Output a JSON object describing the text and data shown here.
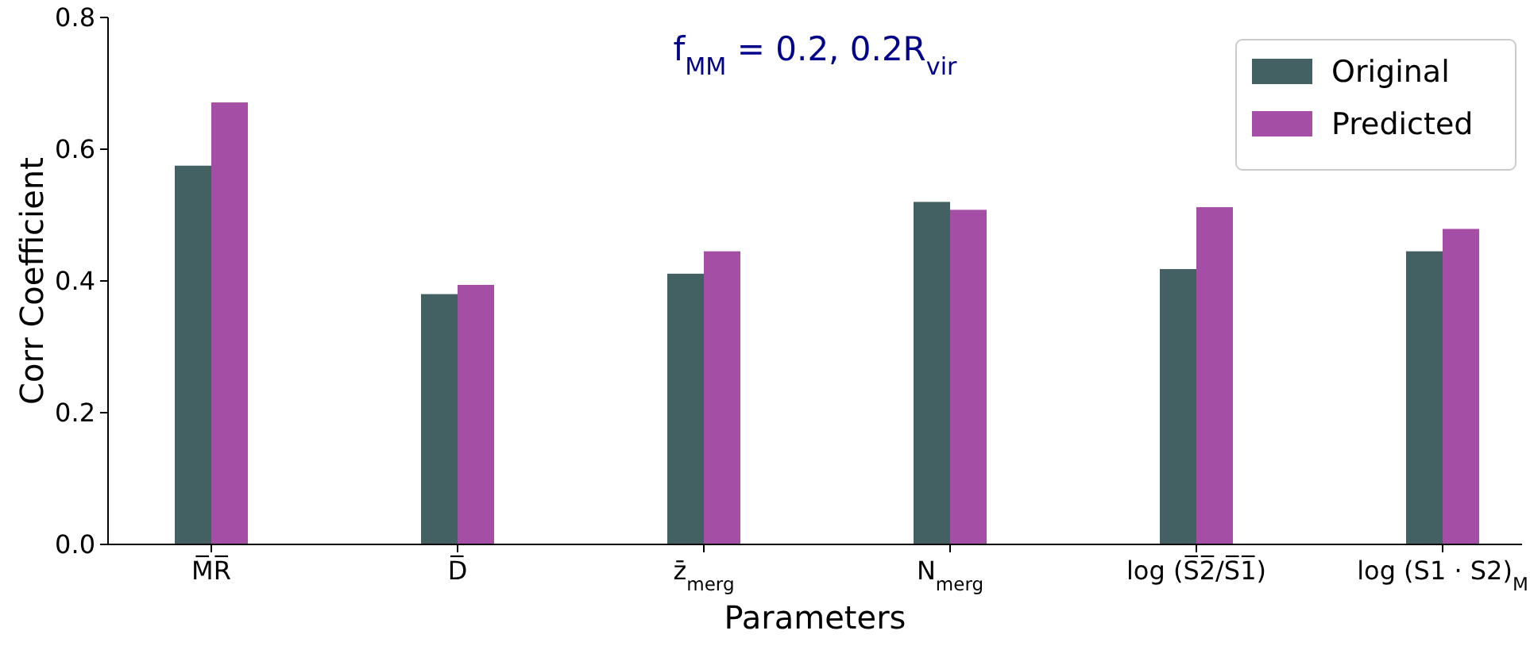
{
  "chart_data": {
    "type": "bar",
    "title": "f$_{MM}$ = 0.2, 0.2R$_{vir}$",
    "xlabel": "Parameters",
    "ylabel": "Corr Coefficient",
    "categories": [
      "M̅R̅",
      "D̅",
      "z̄$_{merg}$",
      "N$_{merg}$",
      "log (S̅2̅/S̅1̅)",
      "log (S1 · S2)$_{M}$"
    ],
    "series": [
      {
        "name": "Original",
        "color": "#436163",
        "values": [
          0.575,
          0.38,
          0.411,
          0.52,
          0.418,
          0.445
        ]
      },
      {
        "name": "Predicted",
        "color": "#a54ea5",
        "values": [
          0.671,
          0.394,
          0.445,
          0.508,
          0.512,
          0.479
        ]
      }
    ],
    "ylim": [
      0,
      0.8
    ],
    "yticks": [
      {
        "value": 0,
        "label": "0.0"
      },
      {
        "value": 0.2,
        "label": "0.2"
      },
      {
        "value": 0.4,
        "label": "0.4"
      },
      {
        "value": 0.6,
        "label": "0.6"
      },
      {
        "value": 0.8,
        "label": "0.8"
      }
    ],
    "grid": false,
    "legend": "top right"
  }
}
